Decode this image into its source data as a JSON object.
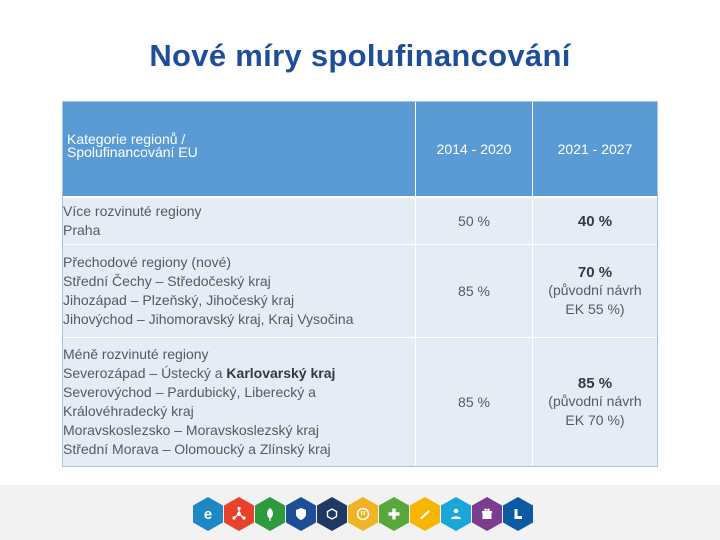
{
  "title": "Nové míry spolufinancování",
  "table": {
    "header": {
      "col1_line1": "Kategorie regionů /",
      "col1_line2": "Spolufinancování EU",
      "col2": "2014 - 2020",
      "col3": "2021 - 2027"
    },
    "rows": [
      {
        "category": "Více rozvinuté regiony",
        "regions": [
          "Praha"
        ],
        "rate_2014": "50 %",
        "rate_2021": "40 %",
        "rate_2021_note": ""
      },
      {
        "category": "Přechodové regiony (nové)",
        "regions": [
          "Střední Čechy – Středočeský kraj",
          "Jihozápad – Plzeňský, Jihočeský kraj",
          "Jihovýchod – Jihomoravský kraj, Kraj Vysočina"
        ],
        "rate_2014": "85 %",
        "rate_2021": "70 %",
        "rate_2021_note_1": "(původní návrh",
        "rate_2021_note_2": "EK 55 %)"
      },
      {
        "category": "Méně rozvinuté regiony",
        "regions_line1_a": "Severozápad – Ústecký a ",
        "regions_line1_b": "Karlovarský kraj",
        "regions": [
          "Severovýchod – Pardubický,  Liberecký a",
          "Královéhradecký kraj",
          "Moravskoslezsko – Moravskoslezský kraj",
          "Střední Morava – Olomoucký a Zlínský kraj"
        ],
        "rate_2014": "85 %",
        "rate_2021": "85 %",
        "rate_2021_note_1": "(původní návrh",
        "rate_2021_note_2": "EK 70 %)"
      }
    ]
  },
  "footer_icons": [
    {
      "name": "e-letter-icon",
      "color": "#1e88c7",
      "glyph": "e"
    },
    {
      "name": "network-icon",
      "color": "#e8412c"
    },
    {
      "name": "leaf-icon",
      "color": "#2e9a3e"
    },
    {
      "name": "shield-icon",
      "color": "#1f4e99"
    },
    {
      "name": "hexagon-dark-icon",
      "color": "#203864"
    },
    {
      "name": "circle-face-icon",
      "color": "#f0b323"
    },
    {
      "name": "plus-icon",
      "color": "#57a83a"
    },
    {
      "name": "pen-icon",
      "color": "#f7b500"
    },
    {
      "name": "people-icon",
      "color": "#1aa6d9"
    },
    {
      "name": "gift-icon",
      "color": "#7a3d8f"
    },
    {
      "name": "l-shape-icon",
      "color": "#0c5aa6"
    }
  ]
}
